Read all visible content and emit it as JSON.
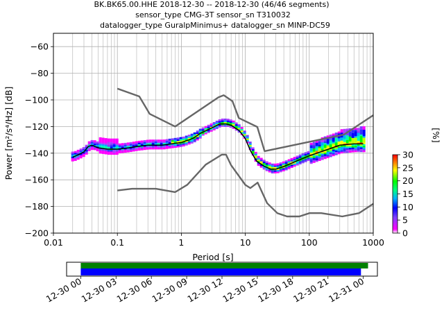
{
  "title_lines": [
    "BK.BK65.00.HHE   2018-12-30 -- 2018-12-30  (46/46 segments)",
    "sensor_type CMG-3T sensor_sn T310032",
    "datalogger_type GuralpMinimus+ datalogger_sn MINP-DC59"
  ],
  "colorbar": {
    "label": "[%]",
    "ticks": [
      "0",
      "5",
      "10",
      "15",
      "20",
      "25",
      "30"
    ],
    "range": [
      0,
      30
    ],
    "colormap": "pqlx"
  },
  "timeline": {
    "tick_labels": [
      "12-30 00",
      "12-30 03",
      "12-30 06",
      "12-30 09",
      "12-30 12",
      "12-30 15",
      "12-30 18",
      "12-30 21",
      "12-31 00"
    ],
    "data_color": "#008000",
    "psd_color": "#0000ff",
    "data_coverage_hours": [
      0,
      24.4
    ],
    "psd_coverage_hours": [
      0,
      23.8
    ],
    "range_hours": [
      -1.2,
      25.2
    ]
  },
  "chart_data": {
    "type": "heatmap",
    "xlabel": "Period [s]",
    "ylabel": "Power [m²/s⁴/Hz] [dB]",
    "xscale": "log",
    "xlim": [
      0.01,
      1000
    ],
    "ylim": [
      -200,
      -50
    ],
    "xticks": [
      "0.01",
      "0.1",
      "1",
      "10",
      "100",
      "1000"
    ],
    "yticks": [
      "−200",
      "−180",
      "−160",
      "−140",
      "−120",
      "−100",
      "−80",
      "−60"
    ],
    "grid": true,
    "series": [
      {
        "kind": "mode_line",
        "color": "#000000",
        "x": [
          0.02,
          0.025,
          0.03,
          0.035,
          0.04,
          0.05,
          0.07,
          0.1,
          0.15,
          0.2,
          0.3,
          0.5,
          0.7,
          1,
          1.5,
          2,
          3,
          4,
          5,
          6,
          8,
          10,
          12,
          15,
          20,
          25,
          30,
          40,
          50,
          70,
          100,
          150,
          200,
          300,
          500,
          700
        ],
        "y": [
          -143,
          -141,
          -139,
          -135,
          -134,
          -136,
          -137,
          -137,
          -136,
          -135,
          -134,
          -134,
          -133,
          -132,
          -129,
          -125,
          -121,
          -118,
          -118,
          -119,
          -123,
          -129,
          -138,
          -146,
          -150,
          -152,
          -152,
          -150,
          -148,
          -145,
          -142,
          -139,
          -137,
          -134,
          -133,
          -133
        ]
      },
      {
        "kind": "model_high",
        "color": "#666666",
        "x": [
          0.1,
          0.22,
          0.32,
          0.8,
          3.8,
          4.6,
          6.3,
          7.9,
          15.4,
          20,
          350,
          1000
        ],
        "y": [
          -91.5,
          -97.4,
          -110.5,
          -120,
          -98,
          -96.5,
          -101,
          -113.6,
          -120.3,
          -138.5,
          -126,
          -111.5
        ]
      },
      {
        "kind": "model_low",
        "color": "#666666",
        "x": [
          0.1,
          0.17,
          0.4,
          0.8,
          1.24,
          2.4,
          4.3,
          5,
          6,
          10,
          12,
          15.6,
          21.9,
          31.6,
          45,
          70,
          101,
          154,
          328,
          600,
          1000
        ],
        "y": [
          -168,
          -166.7,
          -166.7,
          -169.2,
          -163.7,
          -148.6,
          -141.1,
          -141.1,
          -149,
          -163.8,
          -166.2,
          -162.1,
          -177.5,
          -185,
          -187.5,
          -187.5,
          -185,
          -185,
          -187.5,
          -185,
          -178
        ]
      }
    ]
  }
}
